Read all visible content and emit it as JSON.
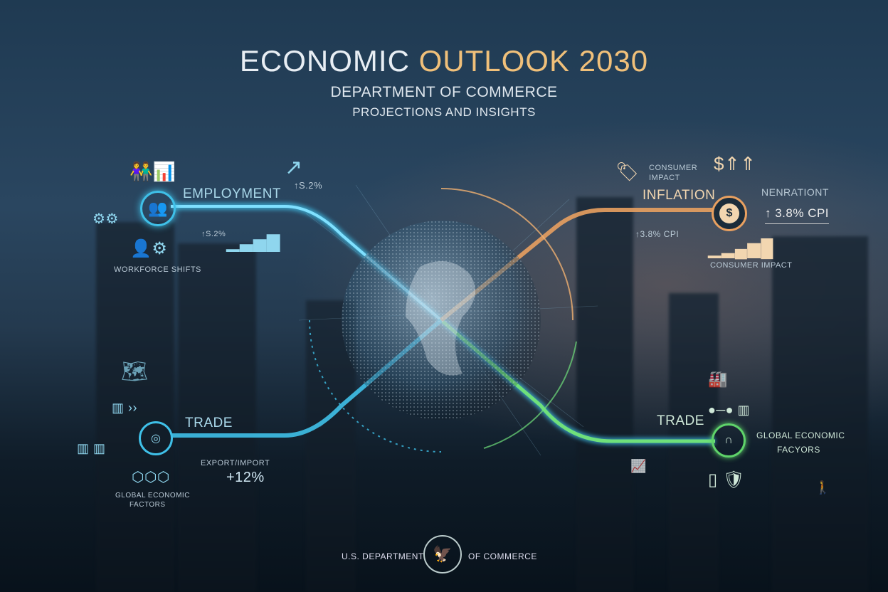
{
  "header": {
    "title_part1": "ECONOMIC ",
    "title_part2": "OUTLOOK 2030",
    "subtitle": "DEPARTMENT OF COMMERCE",
    "tagline": "PROJECTIONS AND INSIGHTS"
  },
  "employment": {
    "label": "EMPLOYMENT",
    "chart_value": "↑S.2%",
    "value": "↑S.2%",
    "caption": "WORKFORCE SHIFTS"
  },
  "inflation": {
    "label": "INFLATION",
    "tag_caption_1": "CONSUMER",
    "tag_caption_2": "IMPACT",
    "value": "↑3.8% CPI",
    "side_title": "NENRATIONT",
    "side_value": "↑ 3.8% CPI",
    "chart_caption": "CONSUMER IMPACT"
  },
  "trade_left": {
    "label": "TRADE",
    "metric_label": "EXPORT/IMPORT",
    "value": "+12%",
    "caption_1": "GLOBAL ECONOMIC",
    "caption_2": "FACTORS"
  },
  "trade_right": {
    "label": "TRADE",
    "caption_1": "GLOBAL ECONOMIC",
    "caption_2": "FACYORS"
  },
  "footer": {
    "left": "U.S. DEPARTMENT",
    "right": "OF COMMERCE"
  },
  "colors": {
    "employment": "#3fc0e8",
    "inflation": "#e8a060",
    "trade_right": "#5fd36a",
    "title_accent": "#f0c07a"
  }
}
